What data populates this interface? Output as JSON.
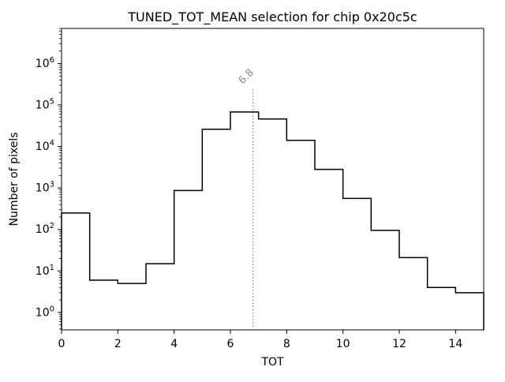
{
  "figure": {
    "background": "#ffffff"
  },
  "chart_data": {
    "type": "bar",
    "subtype": "step-histogram",
    "title": "TUNED_TOT_MEAN selection for chip 0x20c5c",
    "xlabel": "TOT",
    "ylabel": "Number of pixels",
    "yscale": "log",
    "grid": false,
    "xlim": [
      0,
      15
    ],
    "ylim": [
      0.38,
      7000000
    ],
    "xticks": [
      0,
      2,
      4,
      6,
      8,
      10,
      12,
      14
    ],
    "ytick_exponents": [
      0,
      1,
      2,
      3,
      4,
      5,
      6
    ],
    "bin_edges": [
      0,
      1,
      2,
      3,
      4,
      5,
      6,
      7,
      8,
      9,
      10,
      11,
      12,
      13,
      14,
      15
    ],
    "counts": [
      250,
      6,
      5,
      15,
      870,
      26000,
      68000,
      46000,
      14000,
      2800,
      560,
      95,
      21,
      4,
      3
    ],
    "line_color": "#000000",
    "vline": {
      "x": 6.8,
      "label": "6.8",
      "color": "#8a8a8a",
      "style": "dotted",
      "top_value": 250000,
      "label_rotation_deg": 45
    }
  }
}
